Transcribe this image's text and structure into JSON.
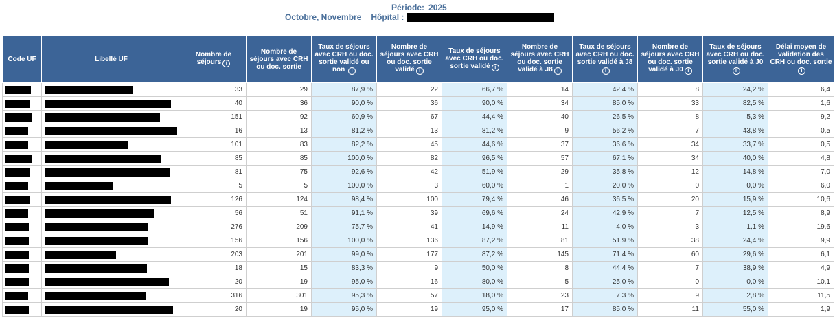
{
  "header": {
    "periode_label": "Période:",
    "periode_value": "2025",
    "months": "Octobre, Novembre",
    "hopital_label": "Hôpital :"
  },
  "icons": {
    "info": "info-circle-icon"
  },
  "columns": [
    {
      "label": "Code UF",
      "info": false
    },
    {
      "label": "Libellé UF",
      "info": false
    },
    {
      "label": "Nombre de séjours",
      "info": true
    },
    {
      "label": "Nombre de séjours avec CRH ou doc. sortie",
      "info": false
    },
    {
      "label": "Taux de séjours avec CRH ou doc. sortie validé ou non",
      "info": true
    },
    {
      "label": "Nombre de séjours avec CRH ou doc. sortie validé",
      "info": true
    },
    {
      "label": "Taux de séjours avec CRH ou doc. sortie validé",
      "info": true
    },
    {
      "label": "Nombre de séjours avec CRH ou doc. sortie validé à J8",
      "info": true
    },
    {
      "label": "Taux de séjours avec CRH ou doc. sortie validé à J8",
      "info": true
    },
    {
      "label": "Nombre de séjours avec CRH ou doc. sortie validé à J0",
      "info": true
    },
    {
      "label": "Taux de séjours avec CRH ou doc. sortie validé à J0",
      "info": true
    },
    {
      "label": "Délai moyen de validation des CRH ou doc. sortie",
      "info": true
    }
  ],
  "rows": [
    {
      "sejours": "33",
      "avec_crh": "29",
      "taux_crh": "87,9 %",
      "valide": "22",
      "taux_valide": "66,7 %",
      "j8": "14",
      "taux_j8": "42,4 %",
      "j0": "8",
      "taux_j0": "24,2 %",
      "delai": "6,4"
    },
    {
      "sejours": "40",
      "avec_crh": "36",
      "taux_crh": "90,0 %",
      "valide": "36",
      "taux_valide": "90,0 %",
      "j8": "34",
      "taux_j8": "85,0 %",
      "j0": "33",
      "taux_j0": "82,5 %",
      "delai": "1,6"
    },
    {
      "sejours": "151",
      "avec_crh": "92",
      "taux_crh": "60,9 %",
      "valide": "67",
      "taux_valide": "44,4 %",
      "j8": "40",
      "taux_j8": "26,5 %",
      "j0": "8",
      "taux_j0": "5,3 %",
      "delai": "9,2"
    },
    {
      "sejours": "16",
      "avec_crh": "13",
      "taux_crh": "81,2 %",
      "valide": "13",
      "taux_valide": "81,2 %",
      "j8": "9",
      "taux_j8": "56,2 %",
      "j0": "7",
      "taux_j0": "43,8 %",
      "delai": "0,5"
    },
    {
      "sejours": "101",
      "avec_crh": "83",
      "taux_crh": "82,2 %",
      "valide": "45",
      "taux_valide": "44,6 %",
      "j8": "37",
      "taux_j8": "36,6 %",
      "j0": "34",
      "taux_j0": "33,7 %",
      "delai": "0,5"
    },
    {
      "sejours": "85",
      "avec_crh": "85",
      "taux_crh": "100,0 %",
      "valide": "82",
      "taux_valide": "96,5 %",
      "j8": "57",
      "taux_j8": "67,1 %",
      "j0": "34",
      "taux_j0": "40,0 %",
      "delai": "4,8"
    },
    {
      "sejours": "81",
      "avec_crh": "75",
      "taux_crh": "92,6 %",
      "valide": "42",
      "taux_valide": "51,9 %",
      "j8": "29",
      "taux_j8": "35,8 %",
      "j0": "12",
      "taux_j0": "14,8 %",
      "delai": "7,0"
    },
    {
      "sejours": "5",
      "avec_crh": "5",
      "taux_crh": "100,0 %",
      "valide": "3",
      "taux_valide": "60,0 %",
      "j8": "1",
      "taux_j8": "20,0 %",
      "j0": "0",
      "taux_j0": "0,0 %",
      "delai": "6,0"
    },
    {
      "sejours": "126",
      "avec_crh": "124",
      "taux_crh": "98,4 %",
      "valide": "100",
      "taux_valide": "79,4 %",
      "j8": "46",
      "taux_j8": "36,5 %",
      "j0": "20",
      "taux_j0": "15,9 %",
      "delai": "10,6"
    },
    {
      "sejours": "56",
      "avec_crh": "51",
      "taux_crh": "91,1 %",
      "valide": "39",
      "taux_valide": "69,6 %",
      "j8": "24",
      "taux_j8": "42,9 %",
      "j0": "7",
      "taux_j0": "12,5 %",
      "delai": "8,9"
    },
    {
      "sejours": "276",
      "avec_crh": "209",
      "taux_crh": "75,7 %",
      "valide": "41",
      "taux_valide": "14,9 %",
      "j8": "11",
      "taux_j8": "4,0 %",
      "j0": "3",
      "taux_j0": "1,1 %",
      "delai": "19,6"
    },
    {
      "sejours": "156",
      "avec_crh": "156",
      "taux_crh": "100,0 %",
      "valide": "136",
      "taux_valide": "87,2 %",
      "j8": "81",
      "taux_j8": "51,9 %",
      "j0": "38",
      "taux_j0": "24,4 %",
      "delai": "9,9"
    },
    {
      "sejours": "203",
      "avec_crh": "201",
      "taux_crh": "99,0 %",
      "valide": "177",
      "taux_valide": "87,2 %",
      "j8": "145",
      "taux_j8": "71,4 %",
      "j0": "60",
      "taux_j0": "29,6 %",
      "delai": "6,1"
    },
    {
      "sejours": "18",
      "avec_crh": "15",
      "taux_crh": "83,3 %",
      "valide": "9",
      "taux_valide": "50,0 %",
      "j8": "8",
      "taux_j8": "44,4 %",
      "j0": "7",
      "taux_j0": "38,9 %",
      "delai": "4,9"
    },
    {
      "sejours": "20",
      "avec_crh": "19",
      "taux_crh": "95,0 %",
      "valide": "16",
      "taux_valide": "80,0 %",
      "j8": "5",
      "taux_j8": "25,0 %",
      "j0": "0",
      "taux_j0": "0,0 %",
      "delai": "10,1"
    },
    {
      "sejours": "316",
      "avec_crh": "301",
      "taux_crh": "95,3 %",
      "valide": "57",
      "taux_valide": "18,0 %",
      "j8": "23",
      "taux_j8": "7,3 %",
      "j0": "9",
      "taux_j0": "2,8 %",
      "delai": "11,5"
    },
    {
      "sejours": "20",
      "avec_crh": "19",
      "taux_crh": "95,0 %",
      "valide": "19",
      "taux_valide": "95,0 %",
      "j8": "17",
      "taux_j8": "85,0 %",
      "j0": "11",
      "taux_j0": "55,0 %",
      "delai": "1,9"
    }
  ]
}
